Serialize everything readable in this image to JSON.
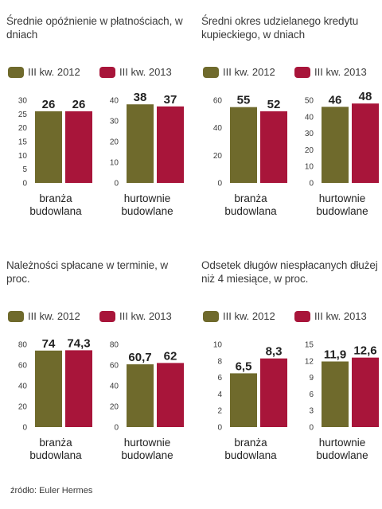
{
  "colors": {
    "y2012": "#6f6a2c",
    "y2013": "#a8153a"
  },
  "source": "źródło: Euler Hermes",
  "chart_data": [
    {
      "type": "bar",
      "title": "Średnie opóźnienie w płatnościach, w dniach",
      "legend": [
        "III kw. 2012",
        "III kw. 2013"
      ],
      "groups": [
        {
          "category": [
            "branża",
            "budowlana"
          ],
          "yticks": [
            0,
            5,
            10,
            15,
            20,
            25,
            30
          ],
          "ymax": 30,
          "values": [
            26,
            26
          ],
          "labels": [
            "26",
            "26"
          ]
        },
        {
          "category": [
            "hurtownie",
            "budowlane"
          ],
          "yticks": [
            0,
            10,
            20,
            30,
            40
          ],
          "ymax": 40,
          "values": [
            38,
            37
          ],
          "labels": [
            "38",
            "37"
          ]
        }
      ]
    },
    {
      "type": "bar",
      "title": "Średni okres udzielanego kredytu kupieckiego, w dniach",
      "legend": [
        "III kw. 2012",
        "III kw. 2013"
      ],
      "groups": [
        {
          "category": [
            "branża",
            "budowlana"
          ],
          "yticks": [
            0,
            20,
            40,
            60
          ],
          "ymax": 60,
          "values": [
            55,
            52
          ],
          "labels": [
            "55",
            "52"
          ]
        },
        {
          "category": [
            "hurtownie",
            "budowlane"
          ],
          "yticks": [
            0,
            10,
            20,
            30,
            40,
            50
          ],
          "ymax": 50,
          "values": [
            46,
            48
          ],
          "labels": [
            "46",
            "48"
          ]
        }
      ]
    },
    {
      "type": "bar",
      "title": "Należności spłacane w terminie, w proc.",
      "legend": [
        "III kw. 2012",
        "III kw. 2013"
      ],
      "groups": [
        {
          "category": [
            "branża",
            "budowlana"
          ],
          "yticks": [
            0,
            20,
            40,
            60,
            80
          ],
          "ymax": 80,
          "values": [
            74,
            74.3
          ],
          "labels": [
            "74",
            "74,3"
          ]
        },
        {
          "category": [
            "hurtownie",
            "budowlane"
          ],
          "yticks": [
            0,
            20,
            40,
            60,
            80
          ],
          "ymax": 80,
          "values": [
            60.7,
            62
          ],
          "labels": [
            "60,7",
            "62"
          ]
        }
      ]
    },
    {
      "type": "bar",
      "title": "Odsetek długów niespłacanych dłużej niż 4 miesiące, w proc.",
      "legend": [
        "III kw. 2012",
        "III kw. 2013"
      ],
      "groups": [
        {
          "category": [
            "branża",
            "budowlana"
          ],
          "yticks": [
            0,
            2,
            4,
            6,
            8,
            10
          ],
          "ymax": 10,
          "values": [
            6.5,
            8.3
          ],
          "labels": [
            "6,5",
            "8,3"
          ]
        },
        {
          "category": [
            "hurtownie",
            "budowlane"
          ],
          "yticks": [
            0,
            3,
            6,
            9,
            12,
            15
          ],
          "ymax": 15,
          "values": [
            11.9,
            12.6
          ],
          "labels": [
            "11,9",
            "12,6"
          ]
        }
      ]
    }
  ]
}
